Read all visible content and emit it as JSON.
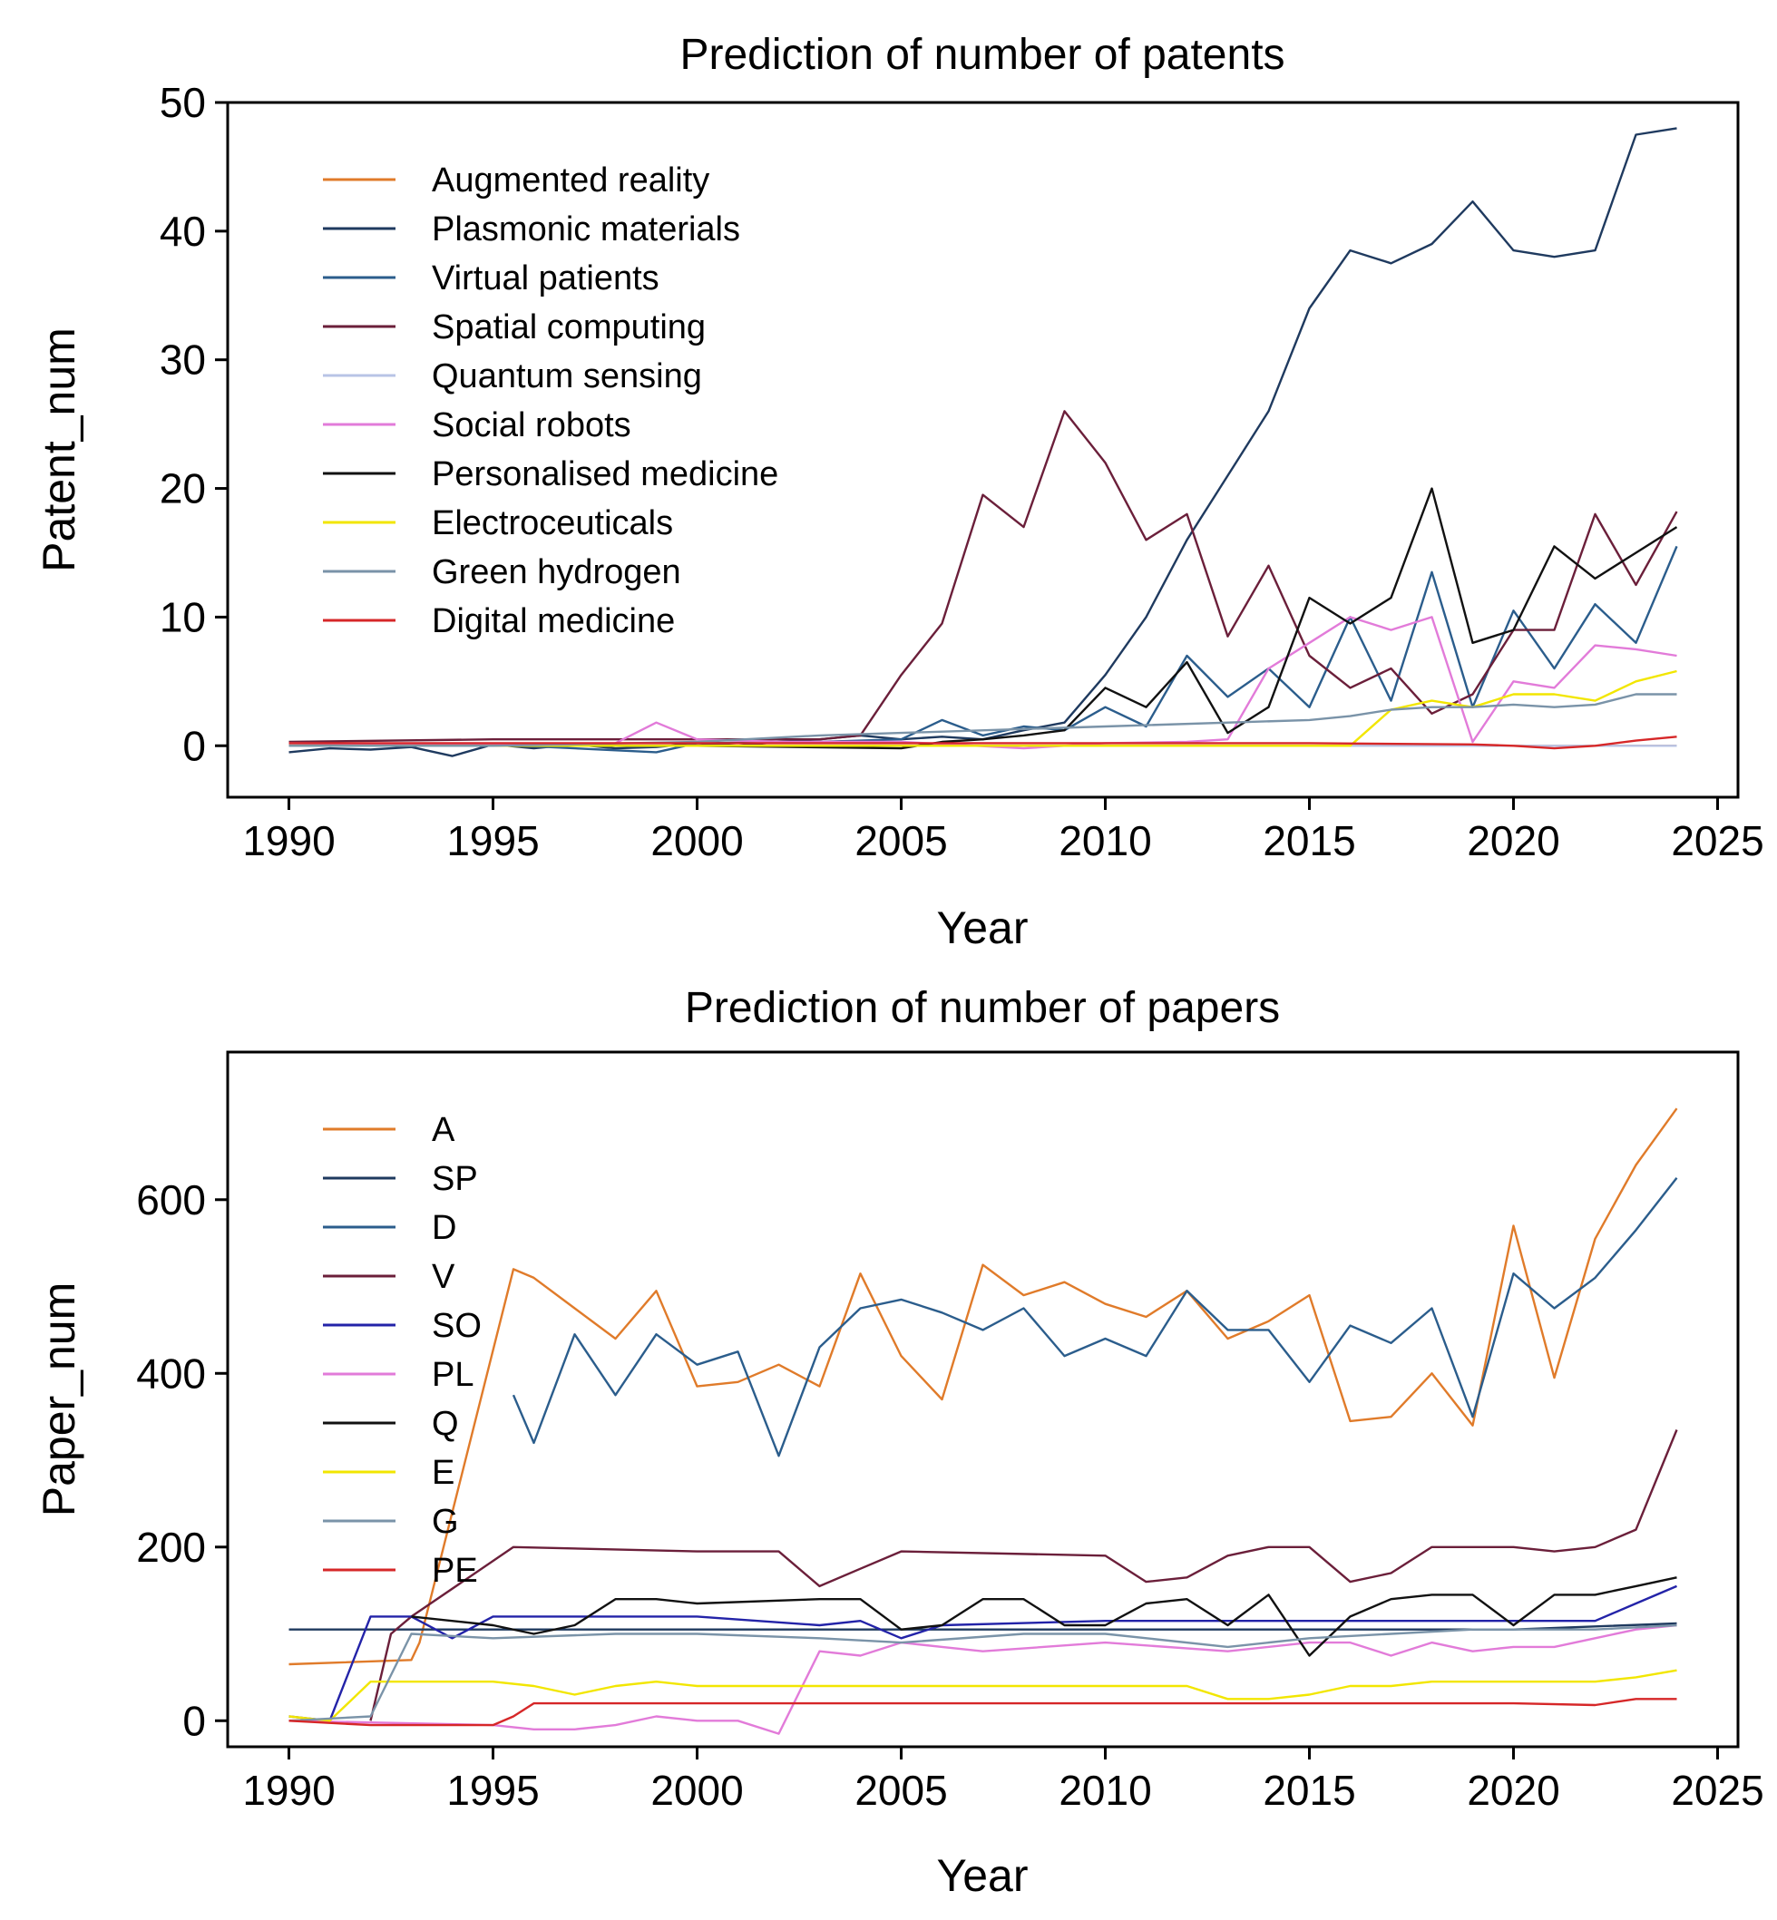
{
  "chart_data": [
    {
      "type": "line",
      "title": "Prediction of number of patents",
      "xlabel": "Year",
      "ylabel": "Patent_num",
      "xlim": [
        1988.5,
        2025.5
      ],
      "ylim": [
        -4,
        50
      ],
      "xticks": [
        1990,
        1995,
        2000,
        2005,
        2010,
        2015,
        2020,
        2025
      ],
      "yticks": [
        0,
        10,
        20,
        30,
        40,
        50
      ],
      "legend_position": "top-left",
      "series": [
        {
          "name": "Augmented reality",
          "color": "#e07b2a",
          "x": [
            1990,
            1995,
            2000,
            2005,
            2010,
            2015,
            2020,
            2024
          ],
          "values": [
            0,
            0,
            0,
            0,
            0,
            0,
            0,
            0
          ]
        },
        {
          "name": "Plasmonic materials",
          "color": "#1f3a5f",
          "x": [
            1990,
            1991,
            1992,
            1993,
            1994,
            1995,
            1996,
            1997,
            1998,
            1999,
            2000,
            2001,
            2002,
            2003,
            2004,
            2005,
            2006,
            2007,
            2008,
            2009,
            2010,
            2011,
            2012,
            2013,
            2014,
            2015,
            2016,
            2017,
            2018,
            2019,
            2020,
            2021,
            2022,
            2023,
            2024
          ],
          "values": [
            -0.5,
            -0.2,
            -0.3,
            -0.1,
            -0.8,
            0.1,
            -0.2,
            0.1,
            -0.2,
            -0.1,
            0.2,
            0,
            0.3,
            0.5,
            0.8,
            0.5,
            0.7,
            0.5,
            1.2,
            1.8,
            5.5,
            10,
            16,
            21,
            26,
            34,
            38.5,
            37.5,
            39,
            42.3,
            38.5,
            38,
            38.5,
            47.5,
            48
          ]
        },
        {
          "name": "Virtual patients",
          "color": "#2b5d8c",
          "x": [
            1990,
            1995,
            1999,
            2000,
            2003,
            2005,
            2006,
            2007,
            2008,
            2009,
            2010,
            2011,
            2012,
            2013,
            2014,
            2015,
            2016,
            2017,
            2018,
            2019,
            2020,
            2021,
            2022,
            2023,
            2024
          ],
          "values": [
            0.2,
            0.1,
            -0.5,
            0.2,
            0.3,
            0.5,
            2,
            0.8,
            1.5,
            1.2,
            3,
            1.5,
            7,
            3.8,
            6,
            3,
            10,
            3.5,
            13.5,
            3,
            10.5,
            6,
            11,
            8,
            15.5
          ]
        },
        {
          "name": "Spatial computing",
          "color": "#6b1f3a",
          "x": [
            1990,
            1995,
            2000,
            2003,
            2004,
            2005,
            2006,
            2007,
            2008,
            2009,
            2010,
            2011,
            2012,
            2013,
            2014,
            2015,
            2016,
            2017,
            2018,
            2019,
            2020,
            2021,
            2022,
            2023,
            2024
          ],
          "values": [
            0.3,
            0.5,
            0.5,
            0.5,
            0.8,
            5.5,
            9.5,
            19.5,
            17,
            26,
            22,
            16,
            18,
            8.5,
            14,
            7,
            4.5,
            6,
            2.5,
            4,
            9,
            9,
            18,
            12.5,
            18.2
          ]
        },
        {
          "name": "Quantum sensing",
          "color": "#b8c4e6",
          "x": [
            1990,
            1995,
            2000,
            2005,
            2010,
            2015,
            2020,
            2024
          ],
          "values": [
            0,
            0,
            0,
            0,
            0,
            0,
            0,
            0
          ]
        },
        {
          "name": "Social robots",
          "color": "#e27bd9",
          "x": [
            1990,
            1995,
            1998,
            1999,
            2000,
            2002,
            2005,
            2008,
            2010,
            2012,
            2013,
            2014,
            2015,
            2016,
            2017,
            2018,
            2019,
            2020,
            2021,
            2022,
            2023,
            2024
          ],
          "values": [
            0.2,
            0.1,
            0.2,
            1.8,
            0.5,
            0.3,
            0.3,
            -0.2,
            0.2,
            0.3,
            0.5,
            6,
            8,
            10,
            9,
            10,
            0.3,
            5,
            4.5,
            7.8,
            7.5,
            7
          ]
        },
        {
          "name": "Personalised medicine",
          "color": "#111111",
          "x": [
            1990,
            1995,
            2000,
            2005,
            2006,
            2007,
            2008,
            2009,
            2010,
            2011,
            2012,
            2013,
            2014,
            2015,
            2016,
            2017,
            2018,
            2019,
            2020,
            2021,
            2022,
            2023,
            2024
          ],
          "values": [
            0,
            0,
            0,
            -0.2,
            0.3,
            0.5,
            0.8,
            1.2,
            4.5,
            3,
            6.5,
            1,
            3,
            11.5,
            9.5,
            11.5,
            20,
            8,
            9,
            15.5,
            13,
            15,
            17
          ]
        },
        {
          "name": "Electroceuticals",
          "color": "#f2e600",
          "x": [
            1990,
            2000,
            2010,
            2016,
            2017,
            2018,
            2019,
            2020,
            2021,
            2022,
            2023,
            2024
          ],
          "values": [
            0,
            0,
            0,
            0,
            2.8,
            3.5,
            3,
            4,
            4,
            3.5,
            5,
            5.8
          ]
        },
        {
          "name": "Green hydrogen",
          "color": "#7a93a8",
          "x": [
            1990,
            1995,
            2000,
            2003,
            2005,
            2010,
            2015,
            2016,
            2017,
            2018,
            2019,
            2020,
            2021,
            2022,
            2023,
            2024
          ],
          "values": [
            0,
            0,
            0.3,
            0.8,
            1,
            1.5,
            2,
            2.3,
            2.8,
            3,
            3,
            3.2,
            3,
            3.2,
            4,
            4
          ]
        },
        {
          "name": "Digital medicine",
          "color": "#d62728",
          "x": [
            1990,
            1995,
            2000,
            2005,
            2010,
            2015,
            2019,
            2020,
            2021,
            2022,
            2023,
            2024
          ],
          "values": [
            0.2,
            0.2,
            0.2,
            0.2,
            0.2,
            0.2,
            0.1,
            0,
            -0.2,
            0,
            0.4,
            0.7
          ]
        }
      ]
    },
    {
      "type": "line",
      "title": "Prediction of number of papers",
      "xlabel": "Year",
      "ylabel": "Paper_num",
      "xlim": [
        1988.5,
        2025.5
      ],
      "ylim": [
        -30,
        770
      ],
      "xticks": [
        1990,
        1995,
        2000,
        2005,
        2010,
        2015,
        2020,
        2025
      ],
      "yticks": [
        0,
        200,
        400,
        600
      ],
      "legend_position": "top-left",
      "series": [
        {
          "name": "A",
          "color": "#e07b2a",
          "x": [
            1990,
            1993,
            1993.2,
            1995.5,
            1996,
            1997,
            1998,
            1999,
            2000,
            2001,
            2002,
            2003,
            2004,
            2005,
            2006,
            2007,
            2008,
            2009,
            2010,
            2011,
            2012,
            2013,
            2014,
            2015,
            2016,
            2017,
            2018,
            2019,
            2020,
            2021,
            2022,
            2023,
            2024
          ],
          "values": [
            65,
            70,
            90,
            520,
            510,
            475,
            440,
            495,
            385,
            390,
            410,
            385,
            515,
            420,
            370,
            525,
            490,
            505,
            480,
            465,
            495,
            440,
            460,
            490,
            345,
            350,
            400,
            340,
            570,
            395,
            555,
            640,
            705
          ]
        },
        {
          "name": "SP",
          "color": "#1f3a5f",
          "x": [
            1990,
            1995,
            2000,
            2005,
            2010,
            2015,
            2020,
            2024
          ],
          "values": [
            105,
            105,
            105,
            105,
            105,
            105,
            105,
            112
          ]
        },
        {
          "name": "D",
          "color": "#2b5d8c",
          "x": [
            1995.5,
            1996,
            1997,
            1998,
            1999,
            2000,
            2001,
            2002,
            2003,
            2004,
            2005,
            2006,
            2007,
            2008,
            2009,
            2010,
            2011,
            2012,
            2013,
            2014,
            2015,
            2016,
            2017,
            2018,
            2019,
            2020,
            2021,
            2022,
            2023,
            2024
          ],
          "values": [
            375,
            320,
            445,
            375,
            445,
            410,
            425,
            305,
            430,
            475,
            485,
            470,
            450,
            475,
            420,
            440,
            420,
            495,
            450,
            450,
            390,
            455,
            435,
            475,
            350,
            515,
            475,
            510,
            565,
            625
          ]
        },
        {
          "name": "V",
          "color": "#6b1f3a",
          "x": [
            1992,
            1992.5,
            1993,
            1995.5,
            2000,
            2002,
            2003,
            2004,
            2005,
            2010,
            2011,
            2012,
            2013,
            2014,
            2015,
            2016,
            2017,
            2018,
            2019,
            2020,
            2021,
            2022,
            2023,
            2024
          ],
          "values": [
            0,
            100,
            120,
            200,
            195,
            195,
            155,
            175,
            195,
            190,
            160,
            165,
            190,
            200,
            200,
            160,
            170,
            200,
            200,
            200,
            195,
            200,
            220,
            335
          ]
        },
        {
          "name": "SO",
          "color": "#2323a8",
          "x": [
            1990,
            1991,
            1992,
            1993,
            1994,
            1995,
            2000,
            2003,
            2004,
            2005,
            2006,
            2010,
            2015,
            2020,
            2022,
            2023,
            2024
          ],
          "values": [
            5,
            0,
            120,
            120,
            95,
            120,
            120,
            110,
            115,
            95,
            110,
            115,
            115,
            115,
            115,
            135,
            155
          ]
        },
        {
          "name": "PL",
          "color": "#e27bd9",
          "x": [
            1990,
            1995,
            1996,
            1997,
            1998,
            1999,
            2000,
            2001,
            2002,
            2003,
            2004,
            2005,
            2006,
            2007,
            2010,
            2013,
            2015,
            2016,
            2017,
            2018,
            2019,
            2020,
            2021,
            2022,
            2023,
            2024
          ],
          "values": [
            0,
            -5,
            -10,
            -10,
            -5,
            5,
            0,
            0,
            -15,
            80,
            75,
            90,
            85,
            80,
            90,
            80,
            90,
            90,
            75,
            90,
            80,
            85,
            85,
            95,
            105,
            110
          ]
        },
        {
          "name": "Q",
          "color": "#111111",
          "x": [
            1993,
            1995,
            1996,
            1997,
            1998,
            1999,
            2000,
            2003,
            2004,
            2005,
            2006,
            2007,
            2008,
            2009,
            2010,
            2011,
            2012,
            2013,
            2014,
            2015,
            2016,
            2017,
            2018,
            2019,
            2020,
            2021,
            2022,
            2023,
            2024
          ],
          "values": [
            120,
            110,
            100,
            110,
            140,
            140,
            135,
            140,
            140,
            105,
            110,
            140,
            140,
            110,
            110,
            135,
            140,
            110,
            145,
            75,
            120,
            140,
            145,
            145,
            110,
            145,
            145,
            155,
            165
          ]
        },
        {
          "name": "E",
          "color": "#f2e600",
          "x": [
            1990,
            1991,
            1992,
            1995,
            1996,
            1997,
            1998,
            1999,
            2000,
            2005,
            2010,
            2012,
            2013,
            2014,
            2015,
            2016,
            2017,
            2018,
            2020,
            2022,
            2023,
            2024
          ],
          "values": [
            5,
            0,
            45,
            45,
            40,
            30,
            40,
            45,
            40,
            40,
            40,
            40,
            25,
            25,
            30,
            40,
            40,
            45,
            45,
            45,
            50,
            58
          ]
        },
        {
          "name": "G",
          "color": "#7a93a8",
          "x": [
            1990,
            1992,
            1993,
            1995,
            1998,
            2000,
            2003,
            2005,
            2008,
            2010,
            2013,
            2015,
            2017,
            2019,
            2020,
            2022,
            2024
          ],
          "values": [
            0,
            5,
            100,
            95,
            100,
            100,
            95,
            90,
            100,
            100,
            85,
            95,
            100,
            105,
            105,
            105,
            110
          ]
        },
        {
          "name": "PE",
          "color": "#d62728",
          "x": [
            1990,
            1992,
            1995,
            1995.5,
            1996,
            2000,
            2005,
            2010,
            2015,
            2020,
            2022,
            2023,
            2024
          ],
          "values": [
            0,
            -5,
            -5,
            5,
            20,
            20,
            20,
            20,
            20,
            20,
            18,
            25,
            25
          ]
        }
      ]
    }
  ]
}
